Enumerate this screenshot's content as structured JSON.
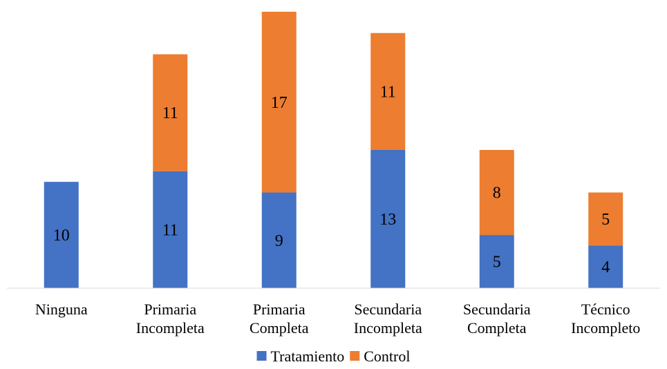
{
  "chart_data": {
    "type": "bar",
    "stacked": true,
    "categories": [
      [
        "Ninguna"
      ],
      [
        "Primaria",
        "Incompleta"
      ],
      [
        "Primaria",
        "Completa"
      ],
      [
        "Secundaria",
        "Incompleta"
      ],
      [
        "Secundaria",
        "Completa"
      ],
      [
        "Técnico",
        "Incompleto"
      ]
    ],
    "series": [
      {
        "name": "Tratamiento",
        "color": "#4472C4",
        "values": [
          10,
          11,
          9,
          13,
          5,
          4
        ]
      },
      {
        "name": "Control",
        "color": "#ED7D31",
        "values": [
          0,
          11,
          17,
          11,
          8,
          5
        ]
      }
    ],
    "ylim": [
      0,
      26
    ],
    "grid": false,
    "legend": "bottom"
  }
}
